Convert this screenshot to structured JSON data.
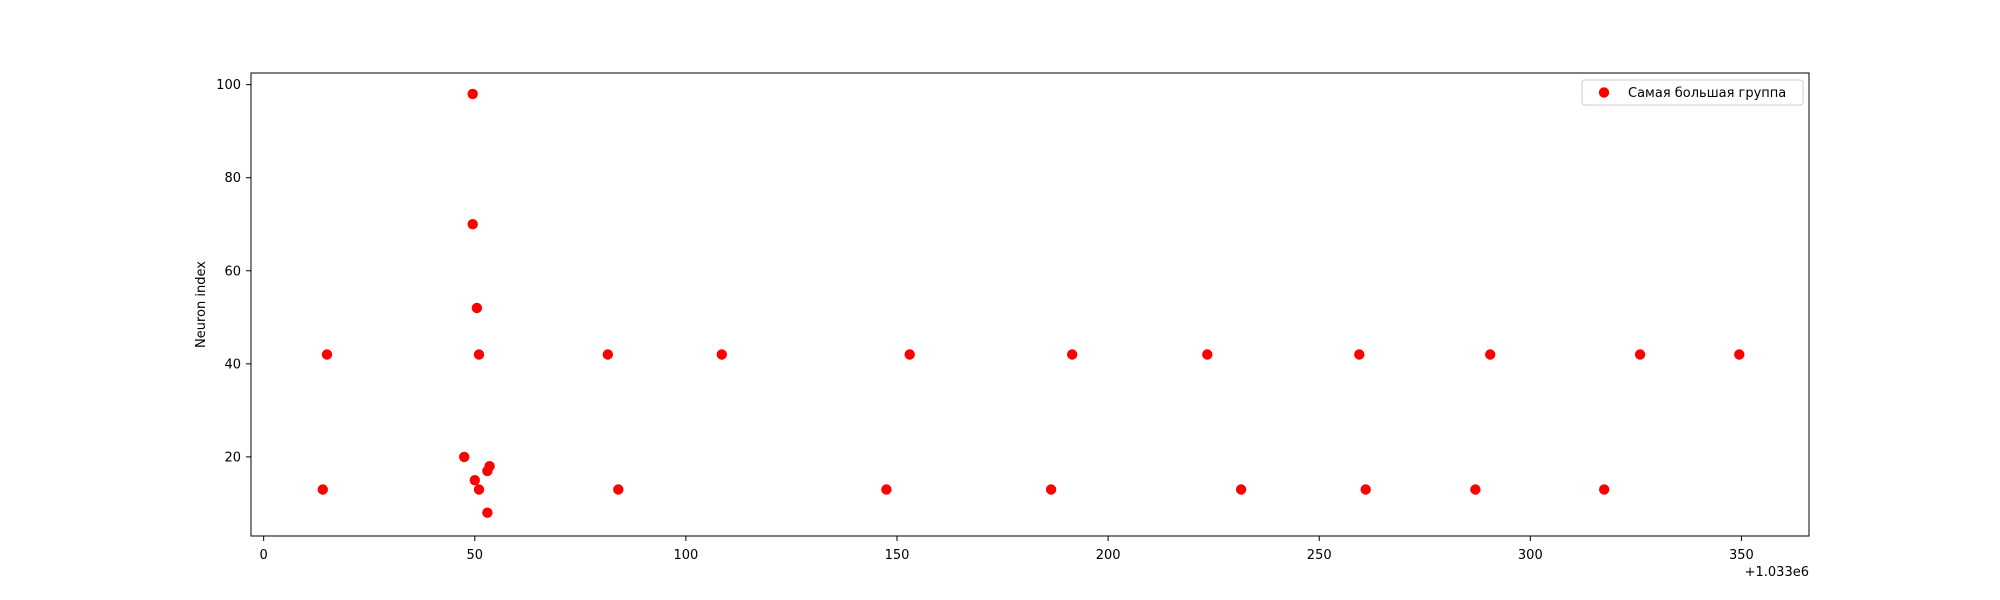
{
  "chart_data": {
    "type": "scatter",
    "title": "",
    "xlabel": "",
    "ylabel": "Neuron index",
    "x_offset_label": "+1.033e6",
    "xlim": [
      -3,
      366
    ],
    "ylim": [
      3,
      102.5
    ],
    "xticks": [
      0,
      50,
      100,
      150,
      200,
      250,
      300,
      350
    ],
    "yticks": [
      20,
      40,
      60,
      80,
      100
    ],
    "grid": false,
    "legend_position": "top-right",
    "series": [
      {
        "name": "Самая большая группа",
        "color": "#ff0000",
        "points": [
          {
            "x": 14,
            "y": 13
          },
          {
            "x": 15,
            "y": 42
          },
          {
            "x": 47.5,
            "y": 20
          },
          {
            "x": 49.5,
            "y": 98
          },
          {
            "x": 49.5,
            "y": 70
          },
          {
            "x": 50,
            "y": 15
          },
          {
            "x": 50.5,
            "y": 52
          },
          {
            "x": 51,
            "y": 42
          },
          {
            "x": 51,
            "y": 13
          },
          {
            "x": 53,
            "y": 17
          },
          {
            "x": 53.5,
            "y": 18
          },
          {
            "x": 53,
            "y": 8
          },
          {
            "x": 81.5,
            "y": 42
          },
          {
            "x": 84,
            "y": 13
          },
          {
            "x": 108.5,
            "y": 42
          },
          {
            "x": 147.5,
            "y": 13
          },
          {
            "x": 153,
            "y": 42
          },
          {
            "x": 186.5,
            "y": 13
          },
          {
            "x": 191.5,
            "y": 42
          },
          {
            "x": 223.5,
            "y": 42
          },
          {
            "x": 231.5,
            "y": 13
          },
          {
            "x": 259.5,
            "y": 42
          },
          {
            "x": 261,
            "y": 13
          },
          {
            "x": 287,
            "y": 13
          },
          {
            "x": 290.5,
            "y": 42
          },
          {
            "x": 317.5,
            "y": 13
          },
          {
            "x": 326,
            "y": 42
          },
          {
            "x": 349.5,
            "y": 42
          }
        ]
      }
    ]
  }
}
